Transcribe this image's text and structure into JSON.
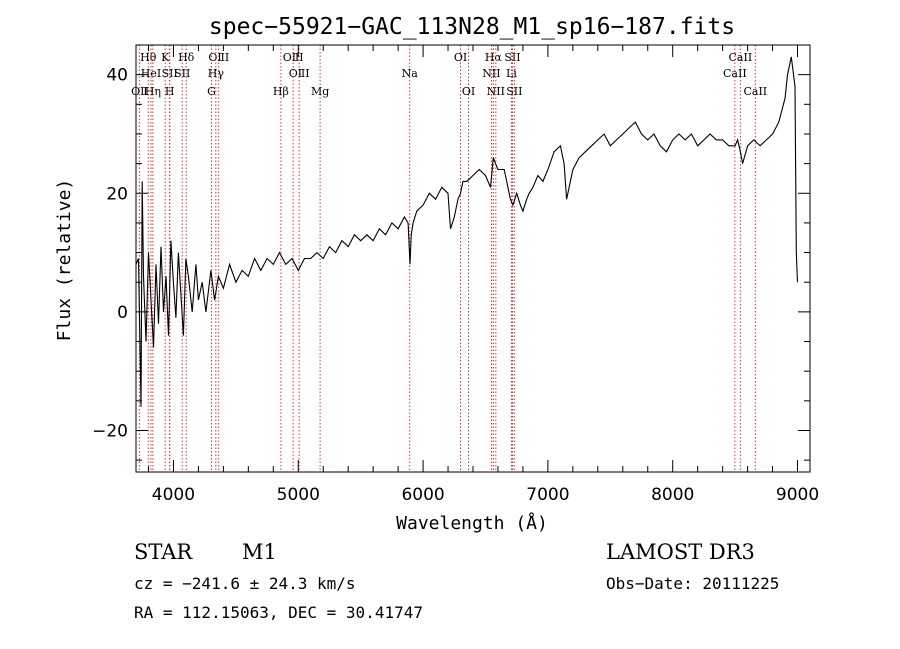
{
  "chart_data": {
    "type": "line",
    "title": "spec−55921−GAC_113N28_M1_sp16−187.fits",
    "xlabel": "Wavelength (Å)",
    "ylabel": "Flux (relative)",
    "xlim": [
      3700,
      9100
    ],
    "ylim": [
      -27,
      45
    ],
    "xticks": [
      4000,
      5000,
      6000,
      7000,
      8000,
      9000
    ],
    "xtick_labels": [
      "4000",
      "5000",
      "6000",
      "7000",
      "8000",
      "9000"
    ],
    "yticks": [
      -20,
      0,
      20,
      40
    ],
    "ytick_labels": [
      "−20",
      "0",
      "20",
      "40"
    ],
    "series": [
      {
        "name": "spectrum",
        "x": [
          3700,
          3720,
          3740,
          3750,
          3760,
          3780,
          3800,
          3820,
          3840,
          3860,
          3880,
          3900,
          3920,
          3940,
          3960,
          3980,
          4000,
          4020,
          4040,
          4060,
          4080,
          4100,
          4120,
          4150,
          4180,
          4200,
          4230,
          4260,
          4300,
          4330,
          4360,
          4400,
          4450,
          4500,
          4550,
          4600,
          4650,
          4700,
          4750,
          4800,
          4850,
          4900,
          4950,
          5000,
          5050,
          5100,
          5150,
          5200,
          5250,
          5300,
          5350,
          5400,
          5450,
          5500,
          5550,
          5600,
          5650,
          5700,
          5750,
          5800,
          5850,
          5880,
          5895,
          5905,
          5920,
          5950,
          6000,
          6050,
          6100,
          6150,
          6200,
          6220,
          6250,
          6280,
          6300,
          6320,
          6350,
          6400,
          6450,
          6500,
          6540,
          6563,
          6580,
          6600,
          6650,
          6700,
          6720,
          6750,
          6780,
          6800,
          6830,
          6850,
          6880,
          6920,
          6960,
          7000,
          7050,
          7100,
          7130,
          7150,
          7200,
          7250,
          7300,
          7350,
          7400,
          7450,
          7500,
          7550,
          7600,
          7650,
          7700,
          7750,
          7800,
          7850,
          7900,
          7950,
          8000,
          8050,
          8100,
          8150,
          8200,
          8250,
          8300,
          8350,
          8400,
          8450,
          8500,
          8520,
          8542,
          8560,
          8600,
          8650,
          8700,
          8750,
          8800,
          8850,
          8900,
          8920,
          8950,
          8980,
          8990,
          9000
        ],
        "y": [
          8,
          9,
          -16,
          22,
          6,
          -5,
          10,
          2,
          -6,
          8,
          -2,
          11,
          0,
          6,
          -4,
          12,
          5,
          -1,
          10,
          3,
          -4,
          9,
          6,
          0,
          8,
          2,
          5,
          0,
          7,
          2,
          6,
          4,
          8,
          5,
          7,
          6,
          9,
          7,
          9,
          8,
          10,
          8,
          9,
          7,
          9,
          9,
          10,
          9,
          11,
          10,
          12,
          11,
          13,
          12,
          13,
          12,
          14,
          13,
          15,
          14,
          16,
          15,
          8,
          13,
          15,
          17,
          18,
          20,
          19,
          21,
          20,
          14,
          16,
          19,
          20,
          22,
          22,
          23,
          24,
          23,
          21,
          26,
          25,
          24,
          24,
          19,
          18,
          20,
          18,
          17,
          19,
          20,
          21,
          23,
          22,
          24,
          27,
          28,
          25,
          19,
          24,
          26,
          27,
          28,
          29,
          30,
          28,
          29,
          30,
          31,
          32,
          30,
          29,
          30,
          28,
          27,
          29,
          30,
          29,
          30,
          28,
          29,
          30,
          29,
          29,
          28,
          28,
          29,
          27,
          25,
          28,
          29,
          28,
          29,
          30,
          32,
          36,
          40,
          43,
          38,
          10,
          5
        ]
      }
    ],
    "line_markers": [
      {
        "label": "OⅡ",
        "x": 3727,
        "row": 3
      },
      {
        "label": "Hθ",
        "x": 3798,
        "row": 1
      },
      {
        "label": "HeI",
        "x": 3820,
        "row": 2
      },
      {
        "label": "Hη",
        "x": 3835,
        "row": 3
      },
      {
        "label": "K",
        "x": 3934,
        "row": 1
      },
      {
        "label": "SII",
        "x": 3970,
        "row": 2
      },
      {
        "label": "H",
        "x": 3970,
        "row": 3
      },
      {
        "label": "Hδ",
        "x": 4102,
        "row": 1
      },
      {
        "label": "SII",
        "x": 4070,
        "row": 2
      },
      {
        "label": "OⅡI",
        "x": 4363,
        "row": 1
      },
      {
        "label": "Hγ",
        "x": 4340,
        "row": 2
      },
      {
        "label": "G",
        "x": 4305,
        "row": 3
      },
      {
        "label": "Hβ",
        "x": 4861,
        "row": 3
      },
      {
        "label": "OⅡI",
        "x": 4959,
        "row": 1
      },
      {
        "label": "OⅡI",
        "x": 5007,
        "row": 2
      },
      {
        "label": "Mg",
        "x": 5175,
        "row": 3
      },
      {
        "label": "Na",
        "x": 5893,
        "row": 2
      },
      {
        "label": "OI",
        "x": 6300,
        "row": 1
      },
      {
        "label": "OI",
        "x": 6364,
        "row": 3
      },
      {
        "label": "Hα",
        "x": 6563,
        "row": 1
      },
      {
        "label": "NII",
        "x": 6548,
        "row": 2
      },
      {
        "label": "NII",
        "x": 6583,
        "row": 3
      },
      {
        "label": "SII",
        "x": 6716,
        "row": 1
      },
      {
        "label": "Li",
        "x": 6708,
        "row": 2
      },
      {
        "label": "SII",
        "x": 6731,
        "row": 3
      },
      {
        "label": "CaII",
        "x": 8542,
        "row": 1
      },
      {
        "label": "CaII",
        "x": 8498,
        "row": 2
      },
      {
        "label": "CaII",
        "x": 8662,
        "row": 3
      }
    ]
  },
  "info": {
    "object_class": "STAR",
    "subclass": "M1",
    "survey": "LAMOST DR3",
    "redshift_line": "cz = −241.6 ± 24.3 km/s",
    "obs_date": "Obs−Date: 20111225",
    "coords": "RA = 112.15063, DEC =  30.41747"
  }
}
